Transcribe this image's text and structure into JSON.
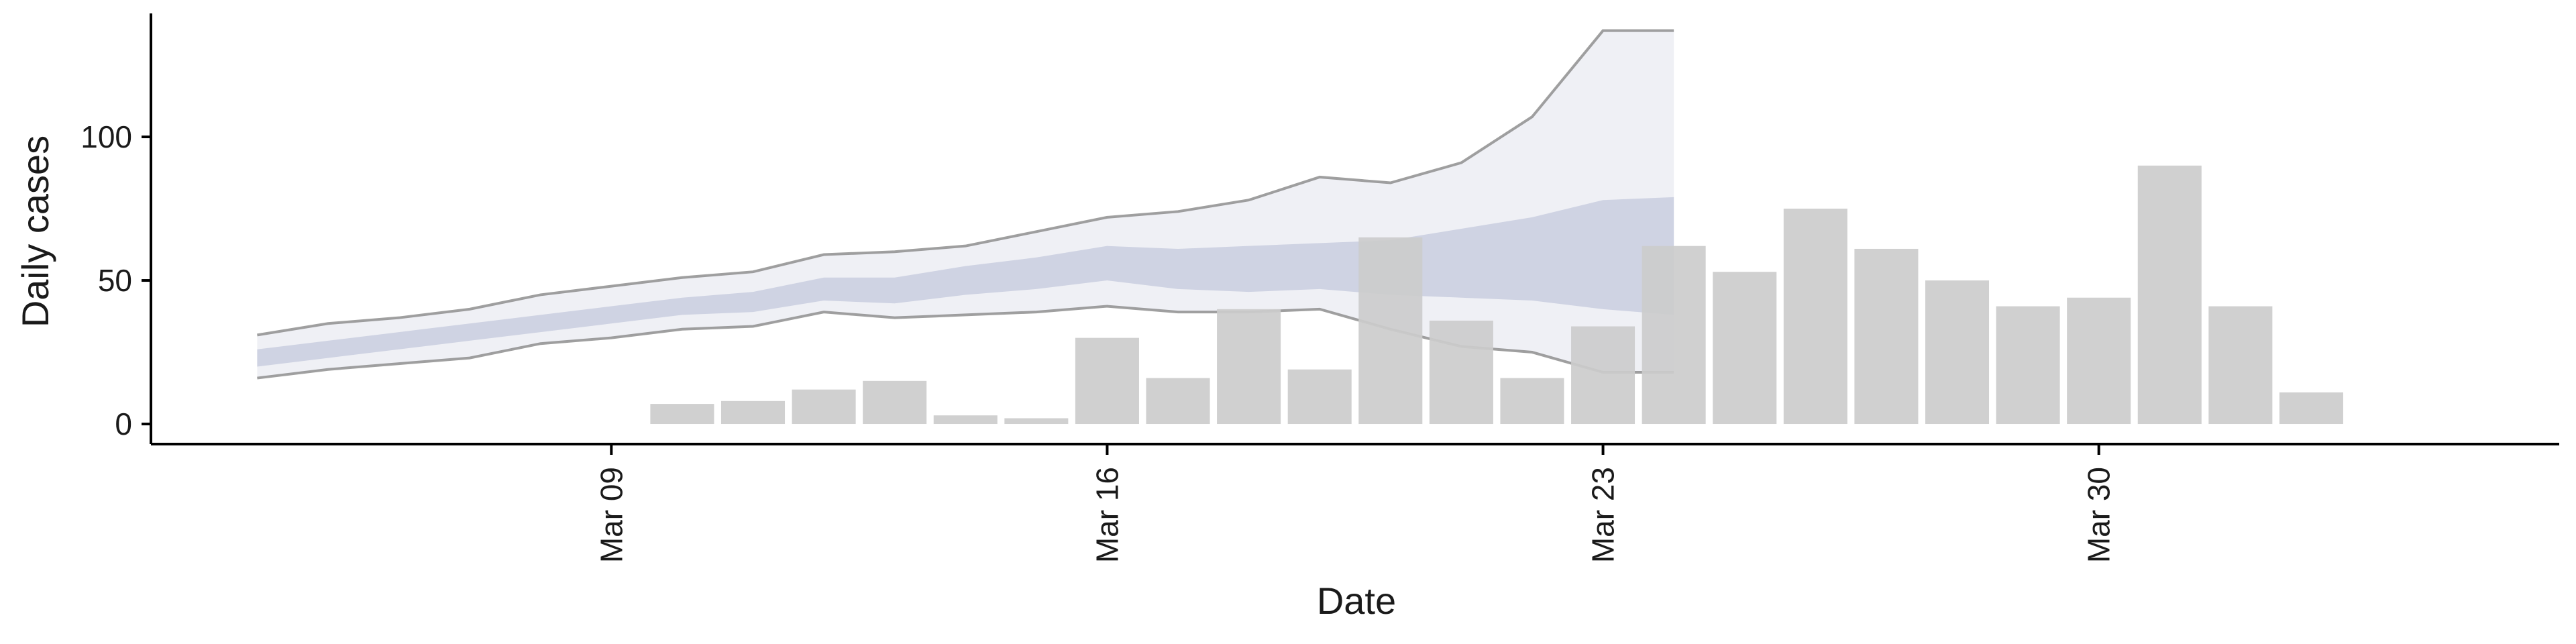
{
  "chart_data": {
    "type": "bar",
    "title": "",
    "xlabel": "Date",
    "ylabel": "Daily cases",
    "x_ticks": [
      "Mar 09",
      "Mar 16",
      "Mar 23",
      "Mar 30"
    ],
    "x_tick_dates": [
      "2020-03-09",
      "2020-03-16",
      "2020-03-23",
      "2020-03-30"
    ],
    "y_ticks": [
      0,
      50,
      100
    ],
    "ylim": [
      -7,
      143
    ],
    "xlim": [
      "2020-03-02T12:00",
      "2020-04-05T12:00"
    ],
    "grid": false,
    "legend": "none",
    "colors": {
      "bars": "#cccccc",
      "band_outer": "#e9ebf2",
      "band_inner": "#c9cedf",
      "band_edge": "#888888",
      "axis": "#000000"
    },
    "bars": {
      "dates": [
        "2020-03-10",
        "2020-03-11",
        "2020-03-12",
        "2020-03-13",
        "2020-03-14",
        "2020-03-15",
        "2020-03-16",
        "2020-03-17",
        "2020-03-18",
        "2020-03-19",
        "2020-03-20",
        "2020-03-21",
        "2020-03-22",
        "2020-03-23",
        "2020-03-24",
        "2020-03-25",
        "2020-03-26",
        "2020-03-27",
        "2020-03-28",
        "2020-03-29",
        "2020-03-30",
        "2020-03-31",
        "2020-04-01",
        "2020-04-02"
      ],
      "values": [
        7,
        8,
        12,
        15,
        3,
        2,
        30,
        16,
        40,
        19,
        65,
        36,
        16,
        34,
        62,
        53,
        75,
        61,
        50,
        41,
        44,
        90,
        41,
        11
      ]
    },
    "projection": {
      "dates": [
        "2020-03-04",
        "2020-03-05",
        "2020-03-06",
        "2020-03-07",
        "2020-03-08",
        "2020-03-09",
        "2020-03-10",
        "2020-03-11",
        "2020-03-12",
        "2020-03-13",
        "2020-03-14",
        "2020-03-15",
        "2020-03-16",
        "2020-03-17",
        "2020-03-18",
        "2020-03-19",
        "2020-03-20",
        "2020-03-21",
        "2020-03-22",
        "2020-03-23",
        "2020-03-24"
      ],
      "outer_lower": [
        16,
        19,
        21,
        23,
        28,
        30,
        33,
        34,
        39,
        37,
        38,
        39,
        41,
        39,
        39,
        40,
        33,
        27,
        25,
        18,
        18
      ],
      "outer_upper": [
        31,
        35,
        37,
        40,
        45,
        48,
        51,
        53,
        59,
        60,
        62,
        67,
        72,
        74,
        78,
        86,
        84,
        91,
        107,
        137,
        137
      ],
      "inner_lower": [
        20,
        23,
        26,
        29,
        32,
        35,
        38,
        39,
        43,
        42,
        45,
        47,
        50,
        47,
        46,
        47,
        45,
        44,
        43,
        40,
        38
      ],
      "inner_upper": [
        26,
        29,
        32,
        35,
        38,
        41,
        44,
        46,
        51,
        51,
        55,
        58,
        62,
        61,
        62,
        63,
        64,
        68,
        72,
        78,
        79
      ]
    }
  }
}
